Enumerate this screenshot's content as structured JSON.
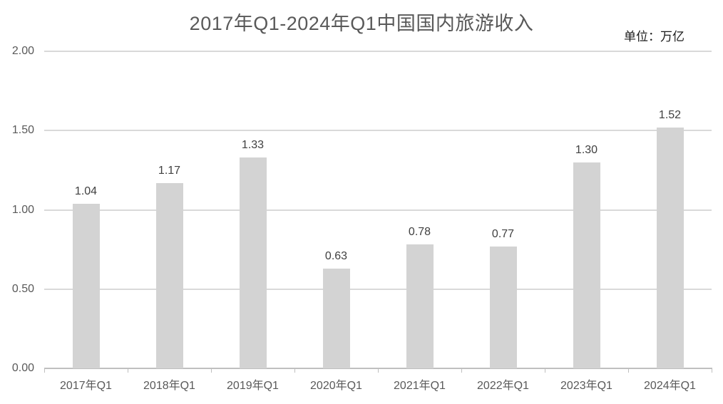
{
  "colors": {
    "background": "#ffffff",
    "bar_fill": "#d3d3d3",
    "gridline": "#d9d9d9",
    "axis_line": "#bfbfbf",
    "title_text": "#595959",
    "value_label_text": "#404040",
    "tick_label_text": "#595959",
    "unit_label_text": "#1a1a1a"
  },
  "chart_data": {
    "type": "bar",
    "title": "2017年Q1-2024年Q1中国国内旅游收入",
    "unit_label": "单位：万亿",
    "categories": [
      "2017年Q1",
      "2018年Q1",
      "2019年Q1",
      "2020年Q1",
      "2021年Q1",
      "2022年Q1",
      "2023年Q1",
      "2024年Q1"
    ],
    "values": [
      1.04,
      1.17,
      1.33,
      0.63,
      0.78,
      0.77,
      1.3,
      1.52
    ],
    "value_labels": [
      "1.04",
      "1.17",
      "1.33",
      "0.63",
      "0.78",
      "0.77",
      "1.30",
      "1.52"
    ],
    "xlabel": "",
    "ylabel": "",
    "ylim": [
      0.0,
      2.0
    ],
    "yticks": [
      0.0,
      0.5,
      1.0,
      1.5,
      2.0
    ],
    "ytick_labels": [
      "0.00",
      "0.50",
      "1.00",
      "1.50",
      "2.00"
    ],
    "grid": true,
    "legend": "none"
  }
}
